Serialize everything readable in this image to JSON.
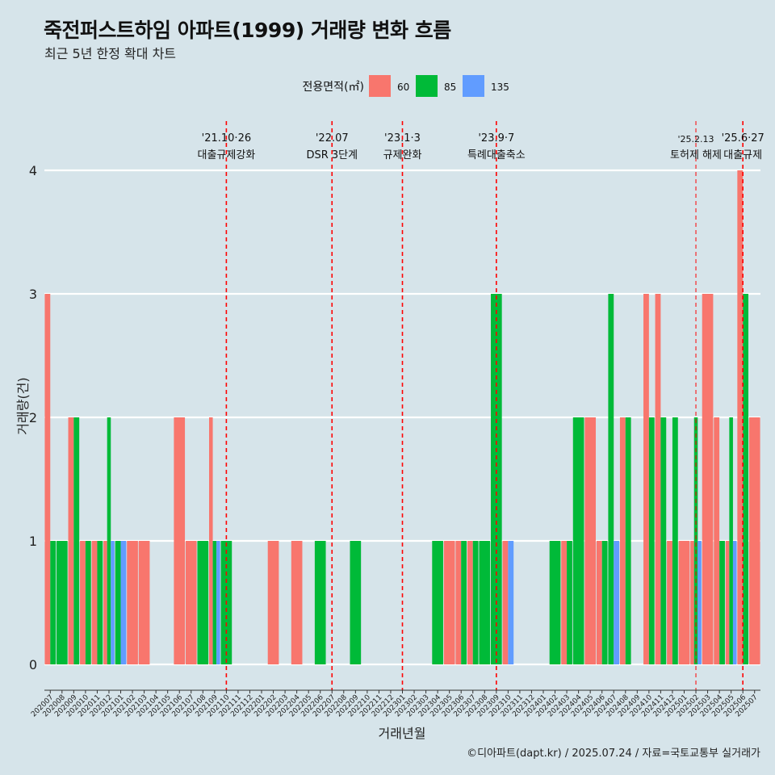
{
  "title": "죽전퍼스트하임 아파트(1999) 거래량 변화 흐름",
  "subtitle": "최근 5년 한정 확대 차트",
  "caption": "©디아파트(dapt.kr) / 2025.07.24 / 자료=국토교통부 실거래가",
  "colors": {
    "background": "#d6e4ea",
    "area_60": "#f8766d",
    "area_85": "#00ba38",
    "area_135": "#619cff",
    "event_line": "#ff0000",
    "grid": "#ffffff"
  },
  "chart_data": {
    "type": "bar",
    "xlabel": "거래년월",
    "ylabel": "거래량(건)",
    "ylim": [
      0,
      4
    ],
    "y_ticks": [
      0,
      1,
      2,
      3,
      4
    ],
    "grid": true,
    "legend": {
      "title": "전용면적(㎡)",
      "position": "top"
    },
    "categories": [
      "202007",
      "202008",
      "202009",
      "202010",
      "202011",
      "202012",
      "202101",
      "202102",
      "202103",
      "202104",
      "202105",
      "202106",
      "202107",
      "202108",
      "202109",
      "202110",
      "202111",
      "202112",
      "202201",
      "202202",
      "202203",
      "202204",
      "202205",
      "202206",
      "202207",
      "202208",
      "202209",
      "202210",
      "202211",
      "202212",
      "202301",
      "202302",
      "202303",
      "202304",
      "202305",
      "202306",
      "202307",
      "202308",
      "202309",
      "202310",
      "202311",
      "202312",
      "202401",
      "202402",
      "202403",
      "202404",
      "202405",
      "202406",
      "202407",
      "202408",
      "202409",
      "202410",
      "202411",
      "202412",
      "202501",
      "202502",
      "202503",
      "202504",
      "202505",
      "202506",
      "202507"
    ],
    "series": [
      {
        "name": "60",
        "values": [
          3,
          0,
          2,
          1,
          1,
          1,
          0,
          1,
          1,
          0,
          0,
          2,
          1,
          0,
          2,
          0,
          0,
          0,
          0,
          1,
          0,
          1,
          0,
          0,
          0,
          0,
          0,
          0,
          0,
          0,
          0,
          0,
          0,
          0,
          1,
          1,
          1,
          0,
          0,
          1,
          0,
          0,
          0,
          0,
          1,
          0,
          2,
          1,
          0,
          2,
          0,
          3,
          3,
          1,
          1,
          1,
          3,
          2,
          1,
          4,
          2
        ]
      },
      {
        "name": "85",
        "values": [
          1,
          1,
          2,
          1,
          1,
          2,
          1,
          0,
          0,
          0,
          0,
          0,
          0,
          1,
          1,
          1,
          0,
          0,
          0,
          0,
          0,
          0,
          0,
          1,
          0,
          0,
          1,
          0,
          0,
          0,
          0,
          0,
          0,
          1,
          0,
          1,
          1,
          1,
          3,
          0,
          0,
          0,
          0,
          1,
          1,
          2,
          0,
          1,
          3,
          2,
          0,
          2,
          2,
          2,
          0,
          2,
          0,
          1,
          2,
          3,
          0
        ]
      },
      {
        "name": "135",
        "values": [
          0,
          0,
          0,
          0,
          0,
          1,
          1,
          0,
          0,
          0,
          0,
          0,
          0,
          0,
          1,
          0,
          0,
          0,
          0,
          0,
          0,
          0,
          0,
          0,
          0,
          0,
          0,
          0,
          0,
          0,
          0,
          0,
          0,
          0,
          0,
          0,
          0,
          0,
          0,
          1,
          0,
          0,
          0,
          0,
          0,
          0,
          0,
          0,
          1,
          0,
          0,
          0,
          0,
          0,
          0,
          1,
          0,
          0,
          1,
          0,
          0
        ]
      }
    ],
    "events": [
      {
        "date": "'21.10·26",
        "label": "대출규제강화",
        "category": "202110",
        "pos": 0.0,
        "style": "major"
      },
      {
        "date": "'22.07",
        "label": "DSR 3단계",
        "category": "202207",
        "pos": 0.0,
        "style": "major"
      },
      {
        "date": "'23.1·3",
        "label": "규제완화",
        "category": "202301",
        "pos": 0.0,
        "style": "major"
      },
      {
        "date": "'23.9·7",
        "label": "특례대출축소",
        "category": "202309",
        "pos": 0.0,
        "style": "major"
      },
      {
        "date": "'25.2.13",
        "label": "토허제 해제",
        "category": "202502",
        "pos": 0.0,
        "style": "minor"
      },
      {
        "date": "'25.6·27",
        "label": "대출규제",
        "category": "202506",
        "pos": 0.0,
        "style": "major"
      }
    ]
  }
}
